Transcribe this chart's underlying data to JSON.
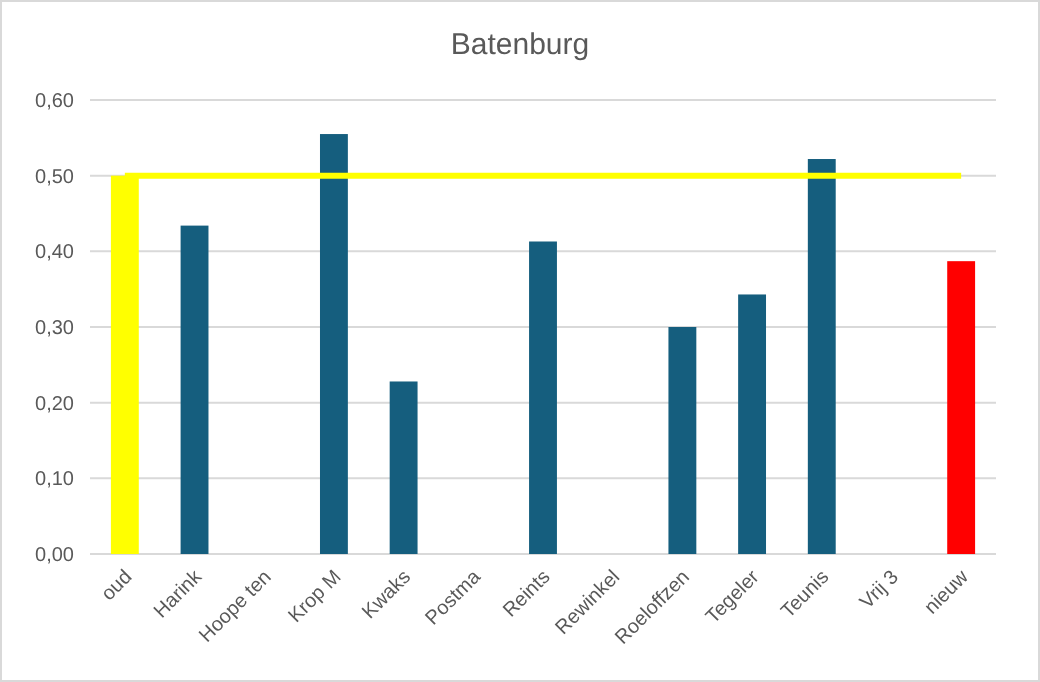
{
  "chart_data": {
    "type": "bar",
    "title": "Batenburg",
    "categories": [
      "oud",
      "Harink",
      "Hoope ten",
      "Krop M",
      "Kwaks",
      "Postma",
      "Reints",
      "Rewinkel",
      "Roeloffzen",
      "Tegeler",
      "Teunis",
      "Vrij 3",
      "nieuw"
    ],
    "series": [
      {
        "colors": [
          "#ffff00",
          "#155e7e",
          null,
          "#155e7e",
          "#155e7e",
          null,
          "#155e7e",
          null,
          "#155e7e",
          "#155e7e",
          "#155e7e",
          null,
          "#ff0000"
        ],
        "values": [
          0.5,
          0.434,
          null,
          0.555,
          0.228,
          null,
          0.413,
          null,
          0.3,
          0.343,
          0.522,
          null,
          0.387
        ]
      },
      {
        "type": "line",
        "color": "#ffff00",
        "values": [
          0.5,
          0.5,
          0.5,
          0.5,
          0.5,
          0.5,
          0.5,
          0.5,
          0.5,
          0.5,
          0.5,
          0.5,
          0.5
        ]
      }
    ],
    "ylim": [
      0,
      0.6
    ],
    "yticks": [
      {
        "value": 0,
        "label": "0,00"
      },
      {
        "value": 0.1,
        "label": "0,10"
      },
      {
        "value": 0.2,
        "label": "0,20"
      },
      {
        "value": 0.3,
        "label": "0,30"
      },
      {
        "value": 0.4,
        "label": "0,40"
      },
      {
        "value": 0.5,
        "label": "0,50"
      },
      {
        "value": 0.6,
        "label": "0,60"
      }
    ],
    "grid": "y"
  }
}
